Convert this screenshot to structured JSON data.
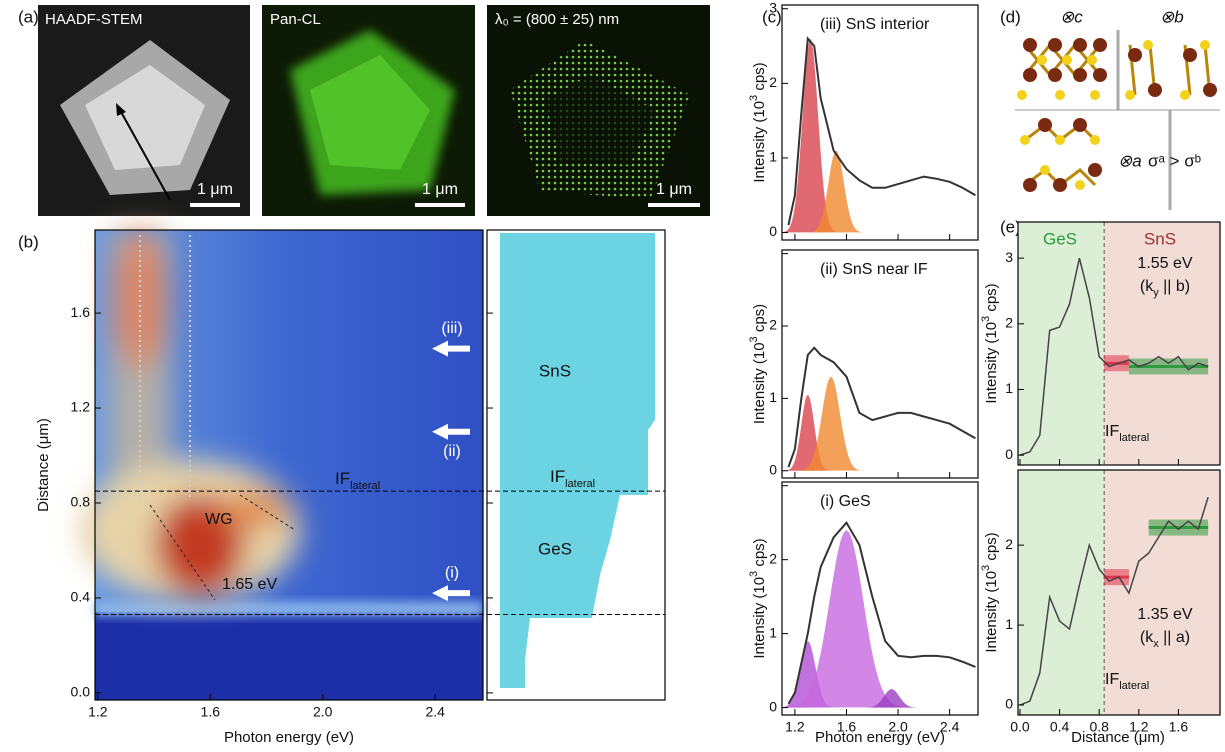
{
  "figure": {
    "a": {
      "label": "(a)",
      "titles": [
        "HAADF-STEM",
        "Pan-CL",
        "λ₀ = (800 ± 25) nm"
      ],
      "scale_bar": "1 μm"
    },
    "b": {
      "label": "(b)",
      "xlabel": "Photon energy (eV)",
      "ylabel": "Distance (μm)",
      "xlim": [
        1.19,
        2.57
      ],
      "ylim": [
        -0.03,
        1.95
      ],
      "xticks": [
        1.2,
        1.6,
        {
          "value": 2,
          "label": "2.0"
        },
        2.4
      ],
      "yticks": [
        {
          "value": 0,
          "label": "0.0"
        },
        0.4,
        0.8,
        1.2,
        1.6
      ],
      "boundaries": [
        0.85,
        0.33
      ],
      "markers": [
        {
          "label": "(iii)",
          "y": 1.45
        },
        {
          "label": "(ii)",
          "y": 1.1
        },
        {
          "label": "(i)",
          "y": 0.42
        }
      ],
      "wg": "WG",
      "peak": "1.65 eV",
      "if_label": [
        "IF",
        "lateral"
      ],
      "sns": "SnS",
      "ges": "GeS"
    },
    "c": {
      "label": "(c)",
      "xlabel": "Photon energy (eV)",
      "ylabel": [
        "Intensity (10",
        "3",
        " cps)"
      ],
      "xlim": [
        1.1,
        2.62
      ],
      "ylim": [
        -0.1,
        3.05
      ],
      "xticks": [
        1.2,
        1.6,
        {
          "value": 2,
          "label": "2.0"
        },
        2.4
      ],
      "yticks": [
        0,
        1,
        2,
        3
      ],
      "x": [
        1.15,
        1.2,
        1.25,
        1.3,
        1.35,
        1.4,
        1.5,
        1.6,
        1.7,
        1.8,
        1.9,
        2.0,
        2.1,
        2.2,
        2.3,
        2.4,
        2.5,
        2.6
      ],
      "plots": [
        {
          "title": "(iii) SnS interior",
          "values": [
            0.1,
            0.5,
            1.6,
            2.6,
            2.5,
            1.8,
            1.1,
            0.85,
            0.7,
            0.6,
            0.6,
            0.65,
            0.7,
            0.75,
            0.72,
            0.68,
            0.6,
            0.5
          ],
          "peaks": [
            {
              "center": 1.32,
              "height": 2.6,
              "width": 0.06,
              "color": "#d9434f"
            },
            {
              "center": 1.52,
              "height": 1.1,
              "width": 0.06,
              "color": "#f08a30"
            }
          ]
        },
        {
          "title": "(ii) SnS near IF",
          "values": [
            0.05,
            0.3,
            1.0,
            1.6,
            1.7,
            1.6,
            1.5,
            1.3,
            0.8,
            0.7,
            0.75,
            0.8,
            0.8,
            0.75,
            0.7,
            0.65,
            0.55,
            0.45
          ],
          "peaks": [
            {
              "center": 1.3,
              "height": 1.05,
              "width": 0.05,
              "color": "#d9434f"
            },
            {
              "center": 1.48,
              "height": 1.3,
              "width": 0.07,
              "color": "#f08a30"
            }
          ]
        },
        {
          "title": "(i) GeS",
          "values": [
            0.05,
            0.2,
            0.6,
            1.0,
            1.5,
            1.9,
            2.3,
            2.5,
            2.2,
            1.5,
            0.9,
            0.7,
            0.68,
            0.7,
            0.7,
            0.68,
            0.62,
            0.55
          ],
          "peaks": [
            {
              "center": 1.3,
              "height": 0.9,
              "width": 0.06,
              "color": "#b34fd6"
            },
            {
              "center": 1.6,
              "height": 2.4,
              "width": 0.13,
              "color": "#c768e0"
            },
            {
              "center": 1.95,
              "height": 0.25,
              "width": 0.06,
              "color": "#9a3fc0"
            }
          ]
        }
      ]
    },
    "d": {
      "label": "(d)",
      "axis_c": "⊗c",
      "axis_b": "⊗b",
      "axis_a": "⊗a",
      "relation": "σᵃ > σᵇ"
    },
    "e": {
      "label": "(e)",
      "xlabel": "Distance (μm)",
      "ylabel": [
        "Intensity (10",
        "3",
        " cps)"
      ],
      "xlim": [
        -0.02,
        2.02
      ],
      "interface": 0.85,
      "xticks": [
        {
          "value": 0,
          "label": "0.0"
        },
        0.4,
        0.8,
        1.2,
        1.6
      ],
      "ges": "GeS",
      "sns": "SnS",
      "if_label": [
        "IF",
        "lateral"
      ],
      "x": [
        0,
        0.1,
        0.2,
        0.3,
        0.4,
        0.5,
        0.6,
        0.7,
        0.8,
        0.9,
        1.0,
        1.1,
        1.2,
        1.3,
        1.4,
        1.5,
        1.6,
        1.7,
        1.8,
        1.9
      ],
      "plots": [
        {
          "ylim": [
            -0.15,
            3.55
          ],
          "yticks": [
            0,
            1,
            2,
            3
          ],
          "energy": "1.55 eV",
          "k_label": [
            "(k",
            "y",
            " || ",
            "b",
            ")"
          ],
          "values": [
            0,
            0.05,
            0.3,
            1.9,
            1.95,
            2.3,
            3.0,
            2.4,
            1.5,
            1.35,
            1.4,
            1.45,
            1.35,
            1.4,
            1.5,
            1.4,
            1.5,
            1.3,
            1.4,
            1.35
          ],
          "levels": [
            {
              "value": 1.4,
              "x0": 0.85,
              "x1": 1.1,
              "color": "#e0344a"
            },
            {
              "value": 1.35,
              "x0": 1.1,
              "x1": 1.9,
              "color": "#2f9a40"
            }
          ]
        },
        {
          "ylim": [
            -0.125,
            2.94
          ],
          "yticks": [
            0,
            1,
            2
          ],
          "energy": "1.35 eV",
          "k_label": [
            "(k",
            "x",
            " || ",
            "a",
            ")"
          ],
          "values": [
            0,
            0.05,
            0.4,
            1.35,
            1.05,
            0.95,
            1.5,
            2.0,
            1.7,
            1.55,
            1.6,
            1.4,
            1.8,
            1.9,
            2.1,
            2.3,
            2.2,
            2.3,
            2.2,
            2.6
          ],
          "levels": [
            {
              "value": 1.6,
              "x0": 0.85,
              "x1": 1.1,
              "color": "#e0344a"
            },
            {
              "value": 2.22,
              "x0": 1.3,
              "x1": 1.9,
              "color": "#2f9a40"
            }
          ]
        }
      ]
    }
  }
}
